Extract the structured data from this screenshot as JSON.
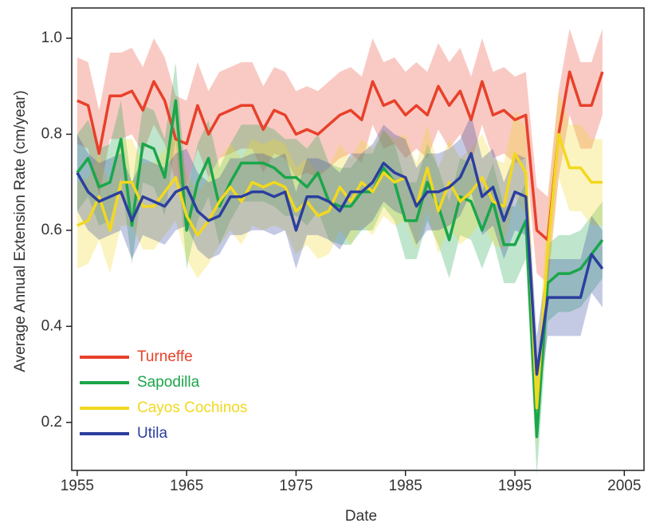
{
  "chart_data": {
    "type": "line",
    "x_label": "Date",
    "y_label": "Average Annual Extension Rate (cm/year)",
    "x": [
      1955,
      1956,
      1957,
      1958,
      1959,
      1960,
      1961,
      1962,
      1963,
      1964,
      1965,
      1966,
      1967,
      1968,
      1969,
      1970,
      1971,
      1972,
      1973,
      1974,
      1975,
      1976,
      1977,
      1978,
      1979,
      1980,
      1981,
      1982,
      1983,
      1984,
      1985,
      1986,
      1987,
      1988,
      1989,
      1990,
      1991,
      1992,
      1993,
      1994,
      1995,
      1996,
      1997,
      1998,
      1999,
      2000,
      2001,
      2002,
      2003
    ],
    "xlim": [
      1954.5,
      2006.8
    ],
    "xticks": [
      1955,
      1965,
      1975,
      1985,
      1995,
      2005
    ],
    "ylim": [
      0.1,
      1.063
    ],
    "yticks": [
      0.2,
      0.4,
      0.6,
      0.8,
      {
        "value": 1,
        "label": "1.0"
      }
    ],
    "legend_position": "lower left",
    "series": [
      {
        "name": "Turneffe",
        "color": "#e8402a",
        "error": 0.09,
        "values": [
          0.87,
          0.86,
          0.76,
          0.88,
          0.88,
          0.89,
          0.85,
          0.91,
          0.87,
          0.79,
          0.78,
          0.86,
          0.8,
          0.84,
          0.85,
          0.86,
          0.86,
          0.81,
          0.85,
          0.84,
          0.8,
          0.81,
          0.8,
          0.82,
          0.84,
          0.85,
          0.83,
          0.91,
          0.86,
          0.87,
          0.84,
          0.86,
          0.84,
          0.9,
          0.86,
          0.89,
          0.83,
          0.91,
          0.84,
          0.85,
          0.83,
          0.84,
          0.6,
          0.58,
          0.8,
          0.93,
          0.86,
          0.86,
          0.93
        ]
      },
      {
        "name": "Sapodilla",
        "color": "#1aa64a",
        "error": 0.08,
        "values": [
          0.72,
          0.75,
          0.69,
          0.7,
          0.79,
          0.61,
          0.78,
          0.77,
          0.71,
          0.87,
          0.6,
          0.7,
          0.75,
          0.65,
          0.7,
          0.74,
          0.74,
          0.74,
          0.73,
          0.71,
          0.71,
          0.69,
          0.72,
          0.66,
          0.65,
          0.65,
          0.68,
          0.68,
          0.73,
          0.7,
          0.62,
          0.62,
          0.7,
          0.65,
          0.58,
          0.67,
          0.66,
          0.6,
          0.66,
          0.57,
          0.57,
          0.62,
          0.17,
          0.49,
          0.51,
          0.51,
          0.52,
          0.55,
          0.58
        ]
      },
      {
        "name": "Cayos Cochinos",
        "color": "#f2d81e",
        "error": 0.09,
        "values": [
          0.61,
          0.62,
          0.67,
          0.6,
          0.7,
          0.7,
          0.65,
          0.65,
          0.68,
          0.71,
          0.63,
          0.59,
          0.62,
          0.66,
          0.69,
          0.66,
          0.7,
          0.69,
          0.7,
          0.69,
          0.64,
          0.66,
          0.63,
          0.64,
          0.69,
          0.66,
          0.7,
          0.68,
          0.72,
          0.7,
          0.71,
          0.65,
          0.73,
          0.64,
          0.7,
          0.66,
          0.68,
          0.71,
          0.66,
          0.65,
          0.76,
          0.72,
          0.23,
          0.56,
          0.8,
          0.73,
          0.73,
          0.7,
          0.7
        ]
      },
      {
        "name": "Utila",
        "color": "#2b3f9e",
        "error": 0.08,
        "values": [
          0.72,
          0.68,
          0.66,
          0.67,
          0.68,
          0.62,
          0.67,
          0.66,
          0.65,
          0.68,
          0.69,
          0.64,
          0.62,
          0.63,
          0.67,
          0.67,
          0.68,
          0.68,
          0.67,
          0.68,
          0.6,
          0.67,
          0.67,
          0.66,
          0.64,
          0.68,
          0.68,
          0.7,
          0.74,
          0.72,
          0.71,
          0.65,
          0.68,
          0.68,
          0.69,
          0.71,
          0.76,
          0.67,
          0.69,
          0.62,
          0.68,
          0.67,
          0.3,
          0.46,
          0.46,
          0.46,
          0.46,
          0.55,
          0.52
        ]
      }
    ]
  }
}
